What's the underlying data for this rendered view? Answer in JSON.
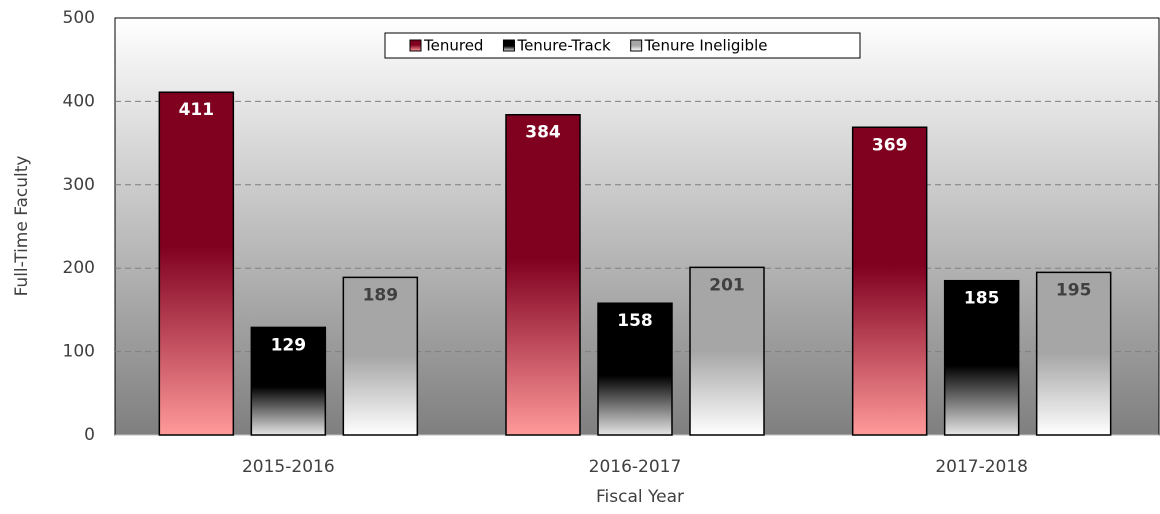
{
  "chart_data": {
    "type": "bar",
    "x_label": "Fiscal Year",
    "y_label": "Full-Time Faculty",
    "categories": [
      "2015-2016",
      "2016-2017",
      "2017-2018"
    ],
    "series": [
      {
        "name": "Tenured",
        "color": "#800020",
        "label_color": "#ffffff",
        "values": [
          411,
          384,
          369
        ]
      },
      {
        "name": "Tenure-Track",
        "color": "#000000",
        "label_color": "#ffffff",
        "values": [
          129,
          158,
          185
        ]
      },
      {
        "name": "Tenure Ineligible",
        "color": "#a6a6a6",
        "label_color": "#404040",
        "values": [
          189,
          201,
          195
        ]
      }
    ],
    "ylim": [
      0,
      500
    ],
    "yticks": [
      0,
      100,
      200,
      300,
      400,
      500
    ],
    "grid": true,
    "legend": "top"
  }
}
